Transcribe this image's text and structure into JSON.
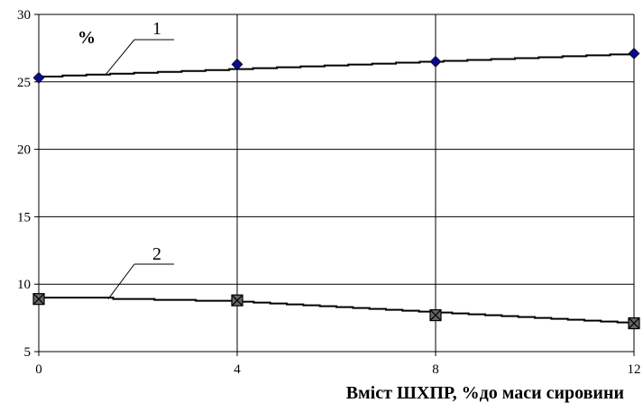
{
  "chart_data": {
    "type": "line",
    "title": "",
    "xlabel": "Вміст ШХПР, %до маси сировини",
    "ylabel": "%",
    "xlim": [
      0,
      12
    ],
    "ylim": [
      5,
      30
    ],
    "grid": true,
    "x_ticks": [
      0,
      4,
      8,
      12
    ],
    "y_ticks": [
      5,
      10,
      15,
      20,
      25,
      30
    ],
    "series": [
      {
        "label": "1",
        "marker": "diamond",
        "color": "#0a0a8a",
        "points": [
          [
            0,
            25.3
          ],
          [
            4,
            26.3
          ],
          [
            8,
            26.5
          ],
          [
            12,
            27.1
          ]
        ],
        "trend": [
          [
            0,
            25.4
          ],
          [
            12,
            27.1
          ]
        ]
      },
      {
        "label": "2",
        "marker": "square",
        "color": "#000000",
        "points": [
          [
            0,
            8.9
          ],
          [
            4,
            8.8
          ],
          [
            8,
            7.7
          ],
          [
            12,
            7.1
          ]
        ],
        "trend": [
          [
            0,
            9.0
          ],
          [
            1.5,
            8.9
          ],
          [
            4,
            8.7
          ],
          [
            8,
            7.9
          ],
          [
            12,
            7.1
          ]
        ]
      }
    ]
  }
}
